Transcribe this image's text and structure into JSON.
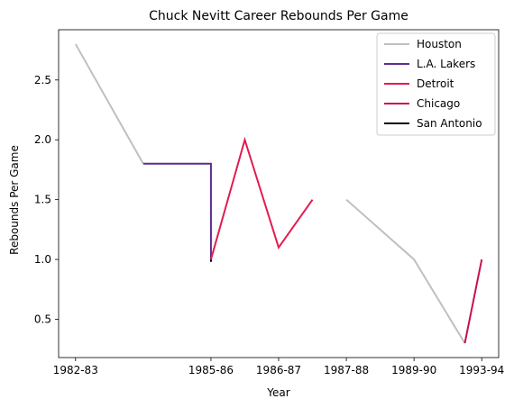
{
  "chart_data": {
    "type": "line",
    "title": "Chuck Nevitt Career Rebounds Per Game",
    "xlabel": "Year",
    "ylabel": "Rebounds Per Game",
    "x_tick_labels": [
      "1982-83",
      "1985-86",
      "1986-87",
      "1987-88",
      "1989-90",
      "1993-94"
    ],
    "x_tick_index": [
      0,
      2,
      3,
      4,
      5,
      6
    ],
    "y_ticks": [
      0.5,
      1.0,
      1.5,
      2.0,
      2.5
    ],
    "y_tick_labels": [
      "0.5",
      "1.0",
      "1.5",
      "2.0",
      "2.5"
    ],
    "xlim": [
      -0.25,
      6.25
    ],
    "ylim": [
      0.18,
      2.92
    ],
    "grid": false,
    "legend_position": "top-right",
    "series": [
      {
        "name": "Houston",
        "color": "#c0c0c0",
        "segments": [
          [
            [
              0,
              2.8
            ],
            [
              1.0,
              1.8
            ]
          ],
          [
            [
              4.0,
              1.5
            ],
            [
              5.0,
              1.0
            ],
            [
              5.75,
              0.3
            ]
          ]
        ]
      },
      {
        "name": "L.A. Lakers",
        "color": "#5b2d8e",
        "segments": [
          [
            [
              1.0,
              1.8
            ],
            [
              2.0,
              1.8
            ],
            [
              2.0,
              1.0
            ]
          ]
        ]
      },
      {
        "name": "Detroit",
        "color": "#e31b4e",
        "segments": [
          [
            [
              2.0,
              1.0
            ],
            [
              2.5,
              2.0
            ],
            [
              3.0,
              1.1
            ],
            [
              3.5,
              1.5
            ]
          ]
        ]
      },
      {
        "name": "Chicago",
        "color": "#c8104e",
        "segments": [
          [
            [
              5.75,
              0.3
            ],
            [
              6.0,
              1.0
            ]
          ]
        ]
      },
      {
        "name": "San Antonio",
        "color": "#000000",
        "segments": [
          [
            [
              2.0,
              1.0
            ],
            [
              2.0,
              0.98
            ]
          ]
        ]
      }
    ]
  }
}
